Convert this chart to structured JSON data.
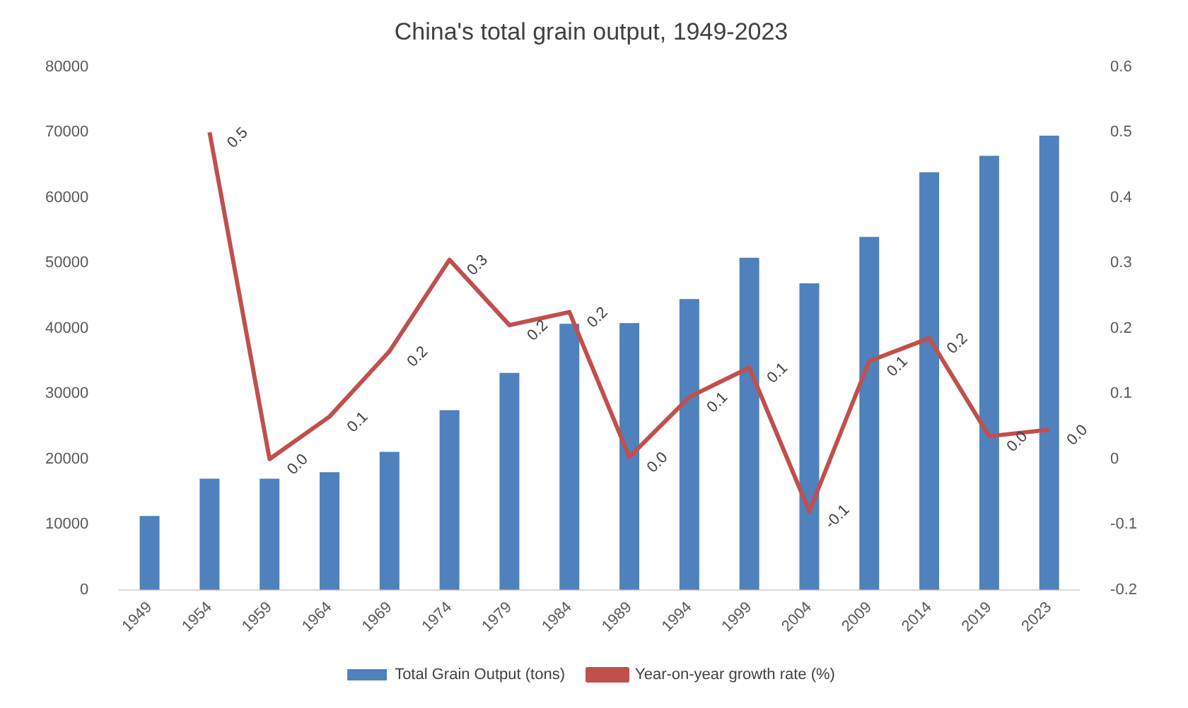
{
  "chart_data": {
    "type": "bar",
    "title": "China's total grain output, 1949-2023",
    "categories": [
      "1949",
      "1954",
      "1959",
      "1964",
      "1969",
      "1974",
      "1979",
      "1984",
      "1989",
      "1994",
      "1999",
      "2004",
      "2009",
      "2014",
      "2019",
      "2023"
    ],
    "series": [
      {
        "name": "Total Grain Output (tons)",
        "color": "#4f81bd",
        "values": [
          11300,
          17000,
          17000,
          18000,
          21100,
          27500,
          33200,
          40700,
          40800,
          44500,
          50800,
          46900,
          54000,
          63900,
          66400,
          69500
        ]
      },
      {
        "name": "Year-on-year growth rate (%)",
        "type": "line",
        "axis": "y2",
        "color": "#c0504d",
        "values": [
          null,
          0.5,
          0.0,
          0.065,
          0.165,
          0.305,
          0.205,
          0.225,
          0.003,
          0.095,
          0.14,
          -0.08,
          0.15,
          0.185,
          0.035,
          0.045
        ],
        "value_labels": [
          null,
          "0.5",
          "0.0",
          "0.1",
          "0.2",
          "0.3",
          "0.2",
          "0.2",
          "0.0",
          "0.1",
          "0.1",
          "-0.1",
          "0.1",
          "0.2",
          "0.0",
          "0.0"
        ]
      }
    ],
    "ylim": [
      0,
      80000
    ],
    "yticks": [
      0,
      10000,
      20000,
      30000,
      40000,
      50000,
      60000,
      70000,
      80000
    ],
    "y2lim": [
      -0.2,
      0.6
    ],
    "y2ticks": [
      -0.2,
      -0.1,
      0,
      0.1,
      0.2,
      0.3,
      0.4,
      0.5,
      0.6
    ],
    "grid": false,
    "legend": "bottom",
    "marker": "none",
    "line_style": "solid"
  }
}
